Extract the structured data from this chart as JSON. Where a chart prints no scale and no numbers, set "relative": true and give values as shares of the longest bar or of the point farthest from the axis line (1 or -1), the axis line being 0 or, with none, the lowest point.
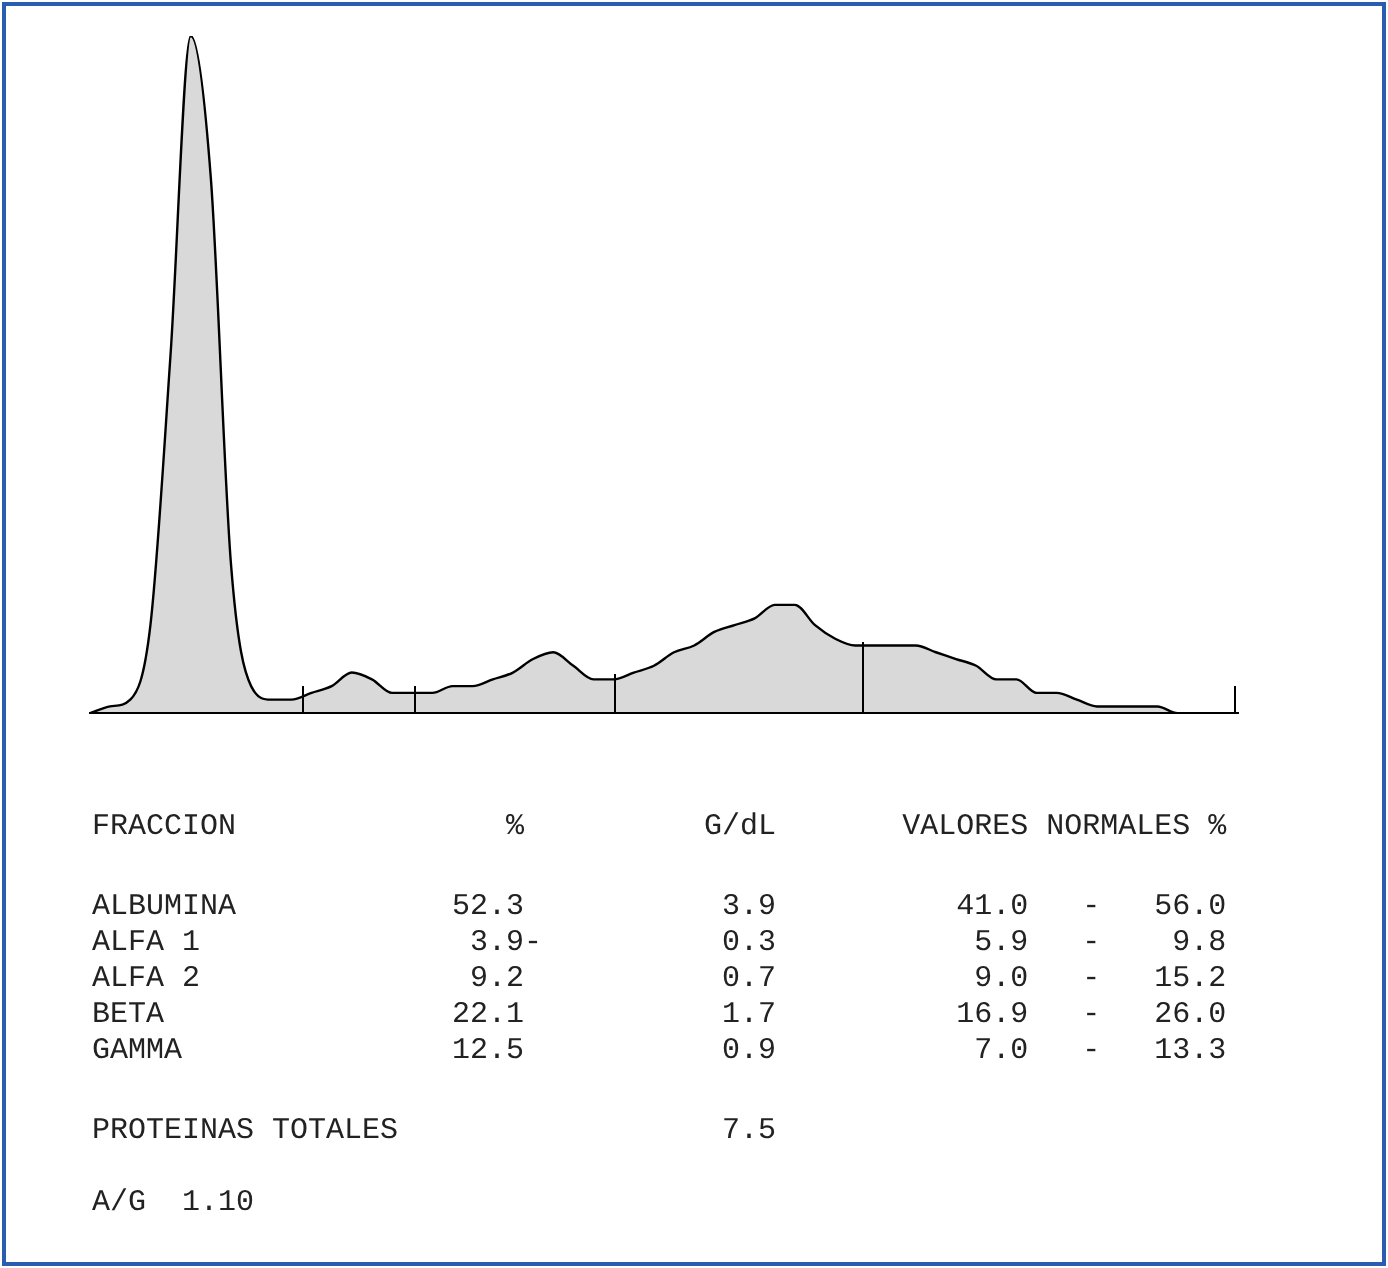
{
  "chart_data": {
    "type": "area",
    "relative": true,
    "grid": false,
    "legend": false,
    "categories": [
      null,
      null,
      null,
      null,
      null,
      null,
      null,
      null,
      null,
      null,
      null,
      null,
      null,
      null,
      null,
      null,
      null,
      null,
      null,
      null,
      null,
      null,
      null,
      null,
      null,
      null,
      null,
      null,
      null,
      null,
      null,
      null,
      null,
      null,
      null,
      null,
      null,
      null,
      null,
      null,
      null,
      null,
      null,
      null,
      null,
      null,
      null,
      null,
      null,
      null,
      null,
      null,
      null,
      null,
      null,
      null,
      null,
      null
    ],
    "series": [
      {
        "color": "#000000",
        "values": [
          0.0,
          0.01,
          0.02,
          0.13,
          0.53,
          1,
          0.79,
          0.22,
          0.04,
          0.02,
          0.02,
          0.03,
          0.04,
          0.06,
          0.05,
          0.03,
          0.03,
          0.03,
          0.04,
          0.04,
          0.05,
          0.06,
          0.08,
          0.09,
          0.07,
          0.05,
          0.05,
          0.06,
          0.07,
          0.09,
          0.1,
          0.12,
          0.13,
          0.14,
          0.16,
          0.16,
          0.13,
          0.11,
          0.1,
          0.1,
          0.1,
          0.1,
          0.09,
          0.08,
          0.07,
          0.05,
          0.05,
          0.03,
          0.03,
          0.02,
          0.01,
          0.01,
          0.01,
          0.01,
          0.0,
          0.0,
          0,
          0
        ]
      }
    ],
    "annotations": [
      "FRACCION               %          G/dL       VALORES NORMALES %",
      "ALBUMINA            52.3           3.9          41.0   -   56.0",
      "ALFA 1               3.9-          0.3           5.9   -    9.8",
      "ALFA 2               9.2           0.7           9.0   -   15.2",
      "BETA                22.1           1.7          16.9   -   26.0",
      "GAMMA               12.5           0.9           7.0   -   13.3",
      "PROTEINAS TOTALES                  7.5",
      "A/G  1.10"
    ]
  }
}
